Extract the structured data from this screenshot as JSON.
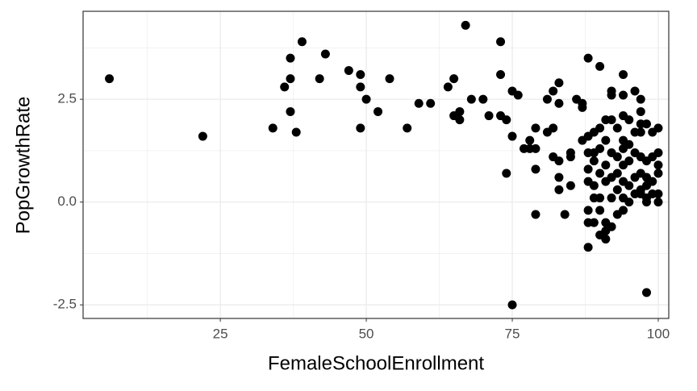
{
  "chart_data": {
    "type": "scatter",
    "x_label": "FemaleSchoolEnrollment",
    "y_label": "PopGrowthRate",
    "x": [
      6,
      22,
      34,
      36,
      37,
      37,
      37,
      38,
      39,
      42,
      43,
      47,
      49,
      49,
      49,
      50,
      52,
      54,
      57,
      59,
      61,
      64,
      65,
      65,
      66,
      66,
      67,
      68,
      70,
      71,
      73,
      73,
      73,
      74,
      74,
      75,
      75,
      75,
      76,
      77,
      78,
      78,
      79,
      79,
      79,
      79,
      81,
      81,
      82,
      82,
      82,
      83,
      83,
      83,
      83,
      83,
      84,
      85,
      85,
      85,
      86,
      87,
      87,
      87,
      88,
      88,
      88,
      88,
      88,
      88,
      88,
      88,
      89,
      89,
      89,
      89,
      89,
      89,
      90,
      90,
      90,
      90,
      90,
      90,
      90,
      91,
      91,
      91,
      91,
      91,
      91,
      91,
      92,
      92,
      92,
      92,
      92,
      92,
      92,
      93,
      93,
      93,
      93,
      93,
      94,
      94,
      94,
      94,
      94,
      94,
      94,
      94,
      94,
      95,
      95,
      95,
      95,
      95,
      96,
      96,
      96,
      96,
      96,
      97,
      97,
      97,
      97,
      97,
      97,
      97,
      97,
      98,
      98,
      98,
      98,
      98,
      98,
      98,
      99,
      99,
      99,
      99,
      100,
      100,
      100,
      100,
      100,
      100
    ],
    "series": [
      {
        "color": "#000000",
        "values": [
          3.0,
          1.6,
          1.8,
          2.8,
          3.5,
          3.0,
          2.2,
          1.7,
          3.9,
          3.0,
          3.6,
          3.2,
          3.1,
          2.8,
          1.8,
          2.5,
          2.2,
          3.0,
          1.8,
          2.4,
          2.4,
          2.8,
          3.0,
          2.1,
          2.2,
          2.0,
          4.3,
          2.5,
          2.5,
          2.1,
          3.9,
          3.1,
          2.1,
          2.0,
          0.7,
          2.7,
          -2.5,
          1.6,
          2.6,
          1.3,
          1.5,
          1.3,
          1.8,
          1.3,
          0.8,
          -0.3,
          1.7,
          2.5,
          2.7,
          1.8,
          1.1,
          2.9,
          2.4,
          1.0,
          0.6,
          0.3,
          -0.3,
          1.2,
          1.1,
          0.4,
          2.5,
          2.4,
          2.3,
          1.5,
          3.5,
          1.6,
          1.2,
          0.8,
          0.5,
          -0.2,
          -0.5,
          -1.1,
          1.7,
          1.2,
          1.0,
          0.1,
          -0.5,
          0.4,
          3.3,
          1.8,
          1.3,
          0.7,
          0.1,
          -0.8,
          -0.2,
          2.0,
          1.5,
          0.9,
          0.5,
          -0.5,
          -0.9,
          -0.7,
          2.6,
          2.0,
          1.2,
          0.6,
          0.1,
          -0.6,
          2.7,
          1.8,
          1.1,
          0.7,
          0.3,
          -0.3,
          3.1,
          2.6,
          2.1,
          1.5,
          1.3,
          0.9,
          0.5,
          -0.2,
          0.1,
          2.0,
          1.4,
          1.0,
          0.4,
          0.0,
          2.7,
          1.7,
          1.2,
          0.6,
          0.2,
          2.5,
          2.2,
          1.9,
          1.7,
          1.1,
          0.7,
          0.3,
          0.2,
          -2.2,
          1.9,
          1.0,
          0.6,
          0.4,
          0.1,
          0.0,
          1.7,
          1.1,
          0.5,
          0.2,
          1.8,
          1.2,
          0.9,
          0.7,
          0.2,
          0.0
        ]
      }
    ],
    "xlim": [
      1.5,
      101.8
    ],
    "ylim": [
      -2.83,
      4.64
    ],
    "xticks": [
      25,
      50,
      75,
      100
    ],
    "yticks": [
      {
        "value": -2.5,
        "label": "-2.5"
      },
      {
        "value": 0,
        "label": "0.0"
      },
      {
        "value": 2.5,
        "label": "2.5"
      }
    ],
    "grid": true,
    "minor_grid": true
  }
}
